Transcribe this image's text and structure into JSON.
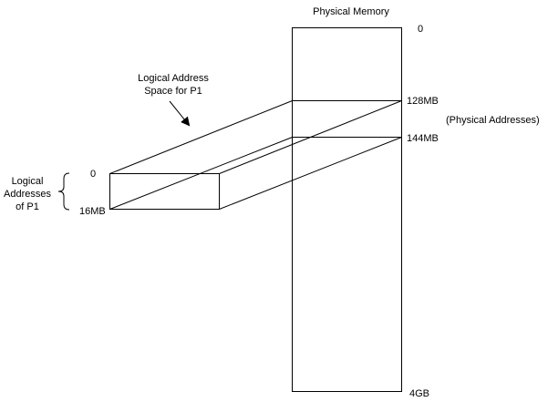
{
  "physical_memory": {
    "title": "Physical Memory",
    "addr_top": "0",
    "addr_128": "128MB",
    "addr_144": "144MB",
    "addr_bottom": "4GB",
    "note": "(Physical Addresses)"
  },
  "logical_space": {
    "title_line1": "Logical Address",
    "title_line2": "Space for P1",
    "addr_top": "0",
    "addr_bottom": "16MB"
  },
  "logical_addresses_label": {
    "line1": "Logical",
    "line2": "Addresses",
    "line3": "of P1"
  },
  "colors": {
    "stroke": "#000000",
    "background": "#ffffff"
  }
}
